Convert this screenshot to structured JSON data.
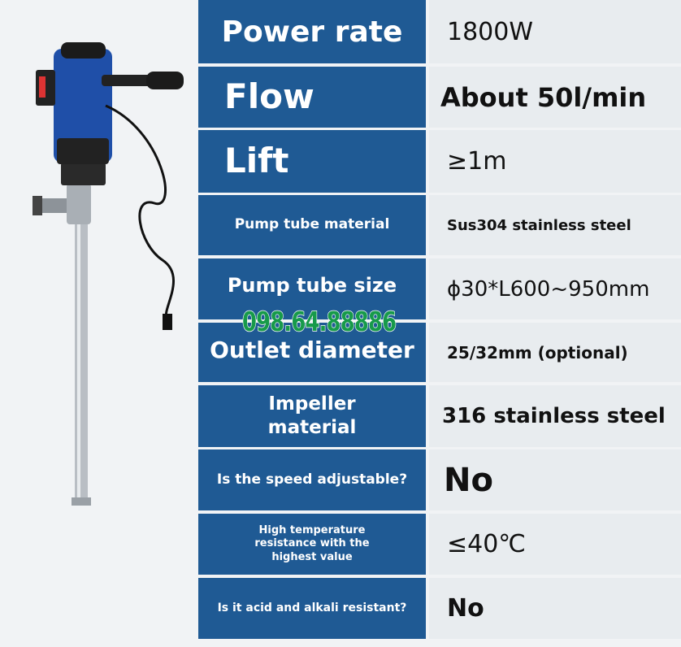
{
  "specs": [
    {
      "label": "Power rate",
      "value": "1800W"
    },
    {
      "label": "Flow",
      "value": "About 50l/min"
    },
    {
      "label": "Lift",
      "value": "≥1m"
    },
    {
      "label": "Pump tube material",
      "value": "Sus304 stainless steel"
    },
    {
      "label": "Pump tube size",
      "value": "ϕ30*L600~950mm"
    },
    {
      "label": "Outlet diameter",
      "value": "25/32mm (optional)"
    },
    {
      "label": "Impeller material",
      "value": "316 stainless steel"
    },
    {
      "label": "Is the speed adjustable?",
      "value": "No"
    },
    {
      "label": "High temperature resistance with the highest value",
      "value": "≤40℃"
    },
    {
      "label": "Is it acid and alkali resistant?",
      "value": "No"
    }
  ],
  "watermark": "098.64.88886",
  "colors": {
    "label_bg": "#1f5a94",
    "value_bg": "#e8ecef",
    "watermark": "#179a4a"
  }
}
